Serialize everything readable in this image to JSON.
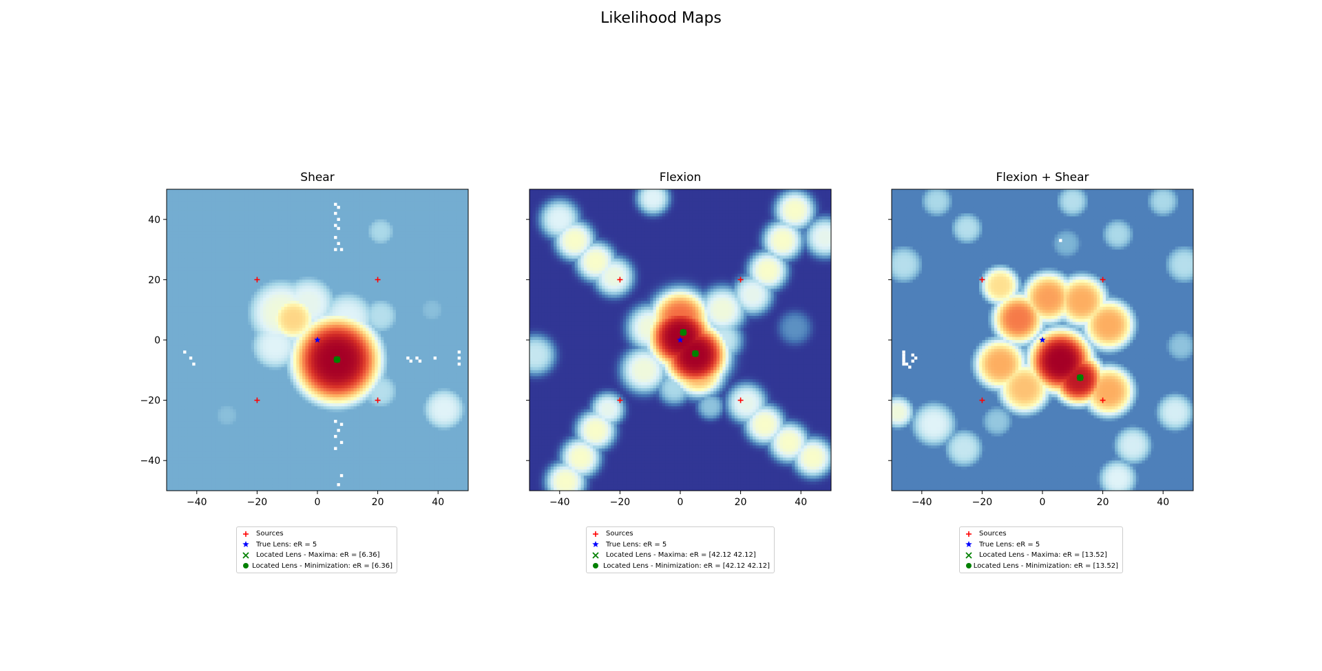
{
  "figure": {
    "title": "Likelihood Maps"
  },
  "chart_data": [
    {
      "type": "heatmap",
      "title": "Shear",
      "xlim": [
        -50,
        50
      ],
      "ylim": [
        -50,
        50
      ],
      "xticks": [
        -40,
        -20,
        0,
        20,
        40
      ],
      "yticks": [
        -40,
        -20,
        0,
        20,
        40
      ],
      "show_yticklabels": true,
      "colormap": "RdYlBu_r",
      "background": 0.2,
      "blobs": [
        {
          "x": 6.4,
          "y": -6.7,
          "r": 14,
          "v": 1.0
        },
        {
          "x": -8,
          "y": 7,
          "r": 7,
          "v": 0.62
        },
        {
          "x": -12,
          "y": 9,
          "r": 11,
          "v": 0.45
        },
        {
          "x": -3,
          "y": 12,
          "r": 9,
          "v": 0.42
        },
        {
          "x": 10,
          "y": 7,
          "r": 9,
          "v": 0.4
        },
        {
          "x": -14,
          "y": -2,
          "r": 8,
          "v": 0.4
        },
        {
          "x": 21,
          "y": 8,
          "r": 6,
          "v": 0.32
        },
        {
          "x": 21,
          "y": -17,
          "r": 6,
          "v": 0.32
        },
        {
          "x": 42,
          "y": -23,
          "r": 7,
          "v": 0.4
        },
        {
          "x": 21,
          "y": 36,
          "r": 5,
          "v": 0.3
        },
        {
          "x": -30,
          "y": -25,
          "r": 5,
          "v": 0.24
        },
        {
          "x": 38,
          "y": 10,
          "r": 5,
          "v": 0.24
        }
      ],
      "white_pixels": [
        [
          6,
          45
        ],
        [
          7,
          44
        ],
        [
          6,
          42
        ],
        [
          7,
          40
        ],
        [
          6,
          38
        ],
        [
          7,
          37
        ],
        [
          6,
          34
        ],
        [
          7,
          32
        ],
        [
          6,
          30
        ],
        [
          8,
          30
        ],
        [
          6,
          -27
        ],
        [
          8,
          -28
        ],
        [
          7,
          -30
        ],
        [
          6,
          -32
        ],
        [
          8,
          -34
        ],
        [
          6,
          -36
        ],
        [
          7,
          -48
        ],
        [
          8,
          -45
        ],
        [
          30,
          -6
        ],
        [
          31,
          -7
        ],
        [
          33,
          -6
        ],
        [
          34,
          -7
        ],
        [
          39,
          -6
        ],
        [
          47,
          -4
        ],
        [
          47,
          -6
        ],
        [
          47,
          -8
        ],
        [
          -42,
          -6
        ],
        [
          -41,
          -8
        ],
        [
          -44,
          -4
        ]
      ],
      "sources": {
        "x": [
          -20,
          20,
          -20,
          20
        ],
        "y": [
          20,
          20,
          -20,
          -20
        ]
      },
      "true_lens": {
        "x": [
          0
        ],
        "y": [
          0
        ]
      },
      "located_maxima": {
        "x": [
          6.5
        ],
        "y": [
          -6.5
        ]
      },
      "located_minimization": {
        "x": [
          6.5
        ],
        "y": [
          -6.5
        ]
      },
      "legend": [
        "Sources",
        "True Lens: eR = 5",
        "Located Lens - Maxima: eR = [6.36]",
        "Located Lens - Minimization: eR = [6.36]"
      ]
    },
    {
      "type": "heatmap",
      "title": "Flexion",
      "xlim": [
        -50,
        50
      ],
      "ylim": [
        -50,
        50
      ],
      "xticks": [
        -40,
        -20,
        0,
        20,
        40
      ],
      "yticks": [
        -40,
        -20,
        0,
        20,
        40
      ],
      "show_yticklabels": false,
      "colormap": "RdYlBu_r",
      "background": 0.0,
      "blobs": [
        {
          "x": 0,
          "y": 1,
          "r": 10,
          "v": 1.0
        },
        {
          "x": 5,
          "y": -5,
          "r": 10,
          "v": 1.0
        },
        {
          "x": 0,
          "y": 7,
          "r": 9,
          "v": 0.8
        },
        {
          "x": 6,
          "y": -10,
          "r": 8,
          "v": 0.7
        },
        {
          "x": -10,
          "y": 4,
          "r": 7,
          "v": 0.45
        },
        {
          "x": 14,
          "y": 10,
          "r": 7,
          "v": 0.45
        },
        {
          "x": 14,
          "y": 0,
          "r": 6,
          "v": 0.35
        },
        {
          "x": -12,
          "y": -10,
          "r": 7,
          "v": 0.45
        },
        {
          "x": -35,
          "y": 33,
          "r": 6,
          "v": 0.48
        },
        {
          "x": -28,
          "y": 26,
          "r": 6,
          "v": 0.48
        },
        {
          "x": -22,
          "y": 21,
          "r": 6,
          "v": 0.44
        },
        {
          "x": -40,
          "y": 40,
          "r": 6,
          "v": 0.4
        },
        {
          "x": 29,
          "y": 23,
          "r": 6,
          "v": 0.48
        },
        {
          "x": 34,
          "y": 33,
          "r": 6,
          "v": 0.48
        },
        {
          "x": 38,
          "y": 43,
          "r": 6,
          "v": 0.48
        },
        {
          "x": 24,
          "y": 15,
          "r": 6,
          "v": 0.42
        },
        {
          "x": 48,
          "y": 34,
          "r": 6,
          "v": 0.42
        },
        {
          "x": 28,
          "y": -28,
          "r": 6,
          "v": 0.48
        },
        {
          "x": 36,
          "y": -34,
          "r": 6,
          "v": 0.48
        },
        {
          "x": 44,
          "y": -39,
          "r": 6,
          "v": 0.48
        },
        {
          "x": 22,
          "y": -21,
          "r": 6,
          "v": 0.42
        },
        {
          "x": -28,
          "y": -30,
          "r": 6,
          "v": 0.48
        },
        {
          "x": -33,
          "y": -39,
          "r": 6,
          "v": 0.48
        },
        {
          "x": -38,
          "y": -47,
          "r": 6,
          "v": 0.48
        },
        {
          "x": -24,
          "y": -23,
          "r": 5,
          "v": 0.42
        },
        {
          "x": -9,
          "y": 47,
          "r": 5,
          "v": 0.4
        },
        {
          "x": -48,
          "y": -5,
          "r": 6,
          "v": 0.35
        },
        {
          "x": -2,
          "y": -16,
          "r": 5,
          "v": 0.3
        },
        {
          "x": 10,
          "y": -22,
          "r": 4,
          "v": 0.25
        },
        {
          "x": 38,
          "y": 4,
          "r": 5,
          "v": 0.15
        }
      ],
      "white_pixels": [],
      "sources": {
        "x": [
          -20,
          20,
          -20,
          20
        ],
        "y": [
          20,
          20,
          -20,
          -20
        ]
      },
      "true_lens": {
        "x": [
          0
        ],
        "y": [
          0
        ]
      },
      "located_maxima": {
        "x": [
          1,
          5
        ],
        "y": [
          2.5,
          -4.5
        ]
      },
      "located_minimization": {
        "x": [
          1,
          5
        ],
        "y": [
          2.5,
          -4.5
        ]
      },
      "legend": [
        "Sources",
        "True Lens: eR = 5",
        "Located Lens - Maxima: eR = [42.12 42.12]",
        "Located Lens - Minimization: eR = [42.12 42.12]"
      ]
    },
    {
      "type": "heatmap",
      "title": "Flexion + Shear",
      "xlim": [
        -50,
        50
      ],
      "ylim": [
        -50,
        50
      ],
      "xticks": [
        -40,
        -20,
        0,
        20,
        40
      ],
      "yticks": [
        -40,
        -20,
        0,
        20,
        40
      ],
      "show_yticklabels": false,
      "colormap": "RdYlBu_r",
      "background": 0.12,
      "blobs": [
        {
          "x": 6,
          "y": -7,
          "r": 10,
          "v": 1.0
        },
        {
          "x": 12,
          "y": -13,
          "r": 8,
          "v": 0.95
        },
        {
          "x": -8,
          "y": 7,
          "r": 8,
          "v": 0.78
        },
        {
          "x": 2,
          "y": 14,
          "r": 8,
          "v": 0.72
        },
        {
          "x": 13,
          "y": 13,
          "r": 8,
          "v": 0.7
        },
        {
          "x": 22,
          "y": 5,
          "r": 8,
          "v": 0.7
        },
        {
          "x": -14,
          "y": -8,
          "r": 8,
          "v": 0.7
        },
        {
          "x": -6,
          "y": -16,
          "r": 8,
          "v": 0.66
        },
        {
          "x": 22,
          "y": -17,
          "r": 8,
          "v": 0.7
        },
        {
          "x": -14,
          "y": 18,
          "r": 6,
          "v": 0.6
        },
        {
          "x": -36,
          "y": -28,
          "r": 7,
          "v": 0.4
        },
        {
          "x": -26,
          "y": -36,
          "r": 6,
          "v": 0.35
        },
        {
          "x": 30,
          "y": -35,
          "r": 6,
          "v": 0.38
        },
        {
          "x": 25,
          "y": -46,
          "r": 6,
          "v": 0.4
        },
        {
          "x": 44,
          "y": -24,
          "r": 6,
          "v": 0.38
        },
        {
          "x": -25,
          "y": 37,
          "r": 5,
          "v": 0.32
        },
        {
          "x": -35,
          "y": 46,
          "r": 5,
          "v": 0.3
        },
        {
          "x": 25,
          "y": 35,
          "r": 5,
          "v": 0.3
        },
        {
          "x": 40,
          "y": 46,
          "r": 5,
          "v": 0.3
        },
        {
          "x": 47,
          "y": 25,
          "r": 6,
          "v": 0.32
        },
        {
          "x": -46,
          "y": 25,
          "r": 6,
          "v": 0.32
        },
        {
          "x": 46,
          "y": -2,
          "r": 5,
          "v": 0.25
        },
        {
          "x": -48,
          "y": -24,
          "r": 5,
          "v": 0.45
        },
        {
          "x": -15,
          "y": -27,
          "r": 5,
          "v": 0.26
        },
        {
          "x": 8,
          "y": 32,
          "r": 5,
          "v": 0.22
        },
        {
          "x": 10,
          "y": 46,
          "r": 5,
          "v": 0.32
        }
      ],
      "white_pixels": [
        [
          -46,
          -4
        ],
        [
          -46,
          -5
        ],
        [
          -46,
          -6
        ],
        [
          -46,
          -7
        ],
        [
          -46,
          -8
        ],
        [
          -45,
          -8
        ],
        [
          -43,
          -5
        ],
        [
          -42,
          -6
        ],
        [
          -43,
          -7
        ],
        [
          -44,
          -9
        ],
        [
          6,
          33
        ]
      ],
      "sources": {
        "x": [
          -20,
          20,
          -20,
          20
        ],
        "y": [
          20,
          20,
          -20,
          -20
        ]
      },
      "true_lens": {
        "x": [
          0
        ],
        "y": [
          0
        ]
      },
      "located_maxima": {
        "x": [
          12.5
        ],
        "y": [
          -12.5
        ]
      },
      "located_minimization": {
        "x": [
          12.5
        ],
        "y": [
          -12.5
        ]
      },
      "legend": [
        "Sources",
        "True Lens: eR = 5",
        "Located Lens - Maxima: eR = [13.52]",
        "Located Lens - Minimization: eR = [13.52]"
      ]
    }
  ],
  "marker_colors": {
    "sources": "#ff0000",
    "true_lens": "#0000ff",
    "located": "#008000"
  }
}
